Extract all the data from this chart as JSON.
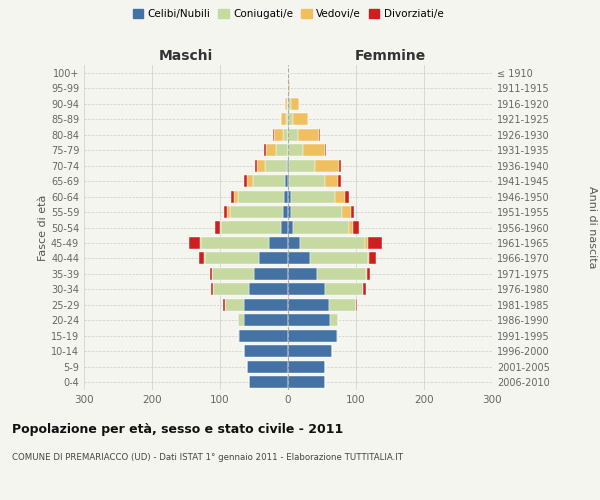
{
  "age_groups": [
    "0-4",
    "5-9",
    "10-14",
    "15-19",
    "20-24",
    "25-29",
    "30-34",
    "35-39",
    "40-44",
    "45-49",
    "50-54",
    "55-59",
    "60-64",
    "65-69",
    "70-74",
    "75-79",
    "80-84",
    "85-89",
    "90-94",
    "95-99",
    "100+"
  ],
  "birth_years": [
    "2006-2010",
    "2001-2005",
    "1996-2000",
    "1991-1995",
    "1986-1990",
    "1981-1985",
    "1976-1980",
    "1971-1975",
    "1966-1970",
    "1961-1965",
    "1956-1960",
    "1951-1955",
    "1946-1950",
    "1941-1945",
    "1936-1940",
    "1931-1935",
    "1926-1930",
    "1921-1925",
    "1916-1920",
    "1911-1915",
    "≤ 1910"
  ],
  "males": {
    "celibi": [
      58,
      60,
      65,
      72,
      65,
      65,
      58,
      50,
      42,
      28,
      10,
      8,
      6,
      4,
      2,
      0,
      0,
      0,
      0,
      0,
      0
    ],
    "coniugati": [
      0,
      0,
      0,
      2,
      8,
      28,
      52,
      62,
      80,
      100,
      88,
      78,
      68,
      48,
      32,
      18,
      8,
      3,
      2,
      0,
      0
    ],
    "vedovi": [
      0,
      0,
      0,
      0,
      0,
      0,
      0,
      0,
      1,
      2,
      2,
      3,
      5,
      8,
      12,
      15,
      12,
      8,
      2,
      0,
      0
    ],
    "divorziati": [
      0,
      0,
      0,
      0,
      0,
      2,
      3,
      3,
      8,
      15,
      8,
      5,
      5,
      5,
      3,
      2,
      2,
      0,
      0,
      0,
      0
    ]
  },
  "females": {
    "nubili": [
      55,
      55,
      65,
      72,
      62,
      60,
      55,
      42,
      32,
      18,
      8,
      5,
      4,
      2,
      2,
      0,
      0,
      0,
      0,
      0,
      0
    ],
    "coniugate": [
      0,
      0,
      0,
      2,
      12,
      40,
      55,
      72,
      85,
      95,
      82,
      75,
      65,
      52,
      38,
      22,
      15,
      8,
      4,
      1,
      0
    ],
    "vedove": [
      0,
      0,
      0,
      0,
      0,
      0,
      0,
      2,
      2,
      5,
      5,
      12,
      15,
      20,
      35,
      32,
      30,
      22,
      12,
      2,
      0
    ],
    "divorziate": [
      0,
      0,
      0,
      0,
      0,
      2,
      5,
      5,
      10,
      20,
      10,
      5,
      5,
      4,
      3,
      2,
      2,
      0,
      0,
      0,
      0
    ]
  },
  "colors": {
    "celibi": "#4472a4",
    "coniugati": "#c5d9a0",
    "vedovi": "#f0c060",
    "divorziati": "#cc2020"
  },
  "xlim": 300,
  "title": "Popolazione per età, sesso e stato civile - 2011",
  "subtitle": "COMUNE DI PREMARIACCO (UD) - Dati ISTAT 1° gennaio 2011 - Elaborazione TUTTITALIA.IT",
  "ylabel_left": "Fasce di età",
  "ylabel_right": "Anni di nascita",
  "xlabel_left": "Maschi",
  "xlabel_right": "Femmine",
  "bg_color": "#f5f5f0",
  "grid_color": "#cccccc"
}
